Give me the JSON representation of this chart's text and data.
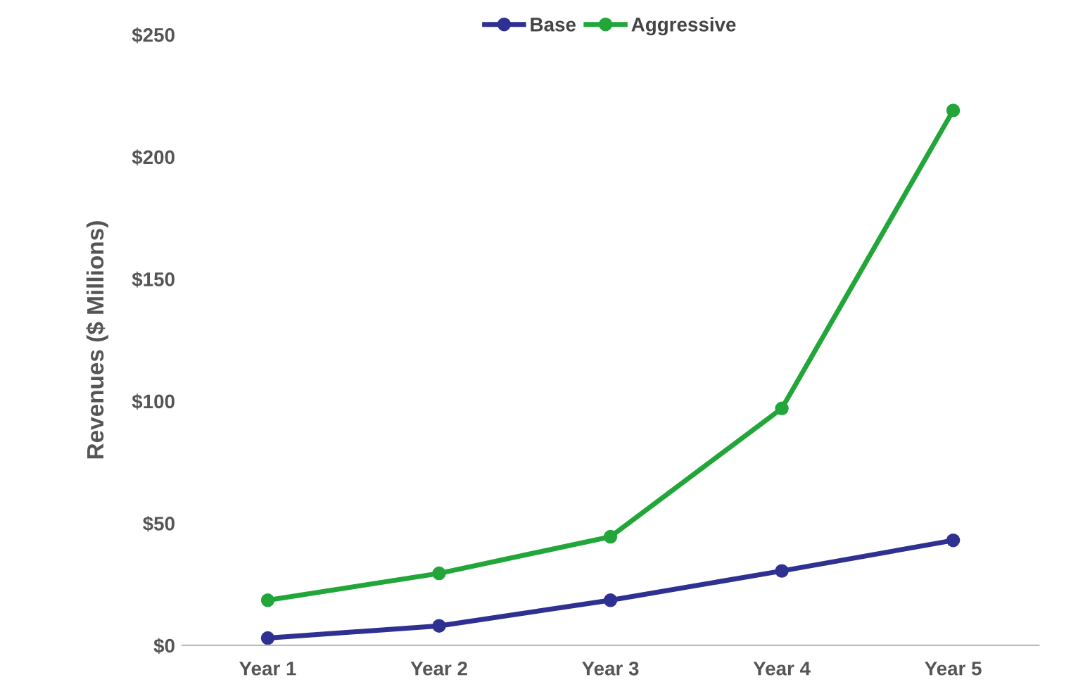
{
  "chart_data": {
    "type": "line",
    "ylabel": "Revenues ($ Millions)",
    "categories": [
      "Year 1",
      "Year 2",
      "Year 3",
      "Year 4",
      "Year 5"
    ],
    "series": [
      {
        "name": "Base",
        "color": "#2e3192",
        "values": [
          3,
          8,
          18.5,
          30.5,
          43
        ]
      },
      {
        "name": "Aggressive",
        "color": "#22a63a",
        "values": [
          18.5,
          29.5,
          44.5,
          97,
          219
        ]
      }
    ],
    "ylim": [
      0,
      250
    ],
    "yticks": [
      {
        "value": 0,
        "label": "$0"
      },
      {
        "value": 50,
        "label": "$50"
      },
      {
        "value": 100,
        "label": "$100"
      },
      {
        "value": 150,
        "label": "$150"
      },
      {
        "value": 200,
        "label": "$200"
      },
      {
        "value": 250,
        "label": "$250"
      }
    ],
    "grid": false,
    "legend": "top",
    "marker": "circle",
    "line_style": "solid"
  }
}
